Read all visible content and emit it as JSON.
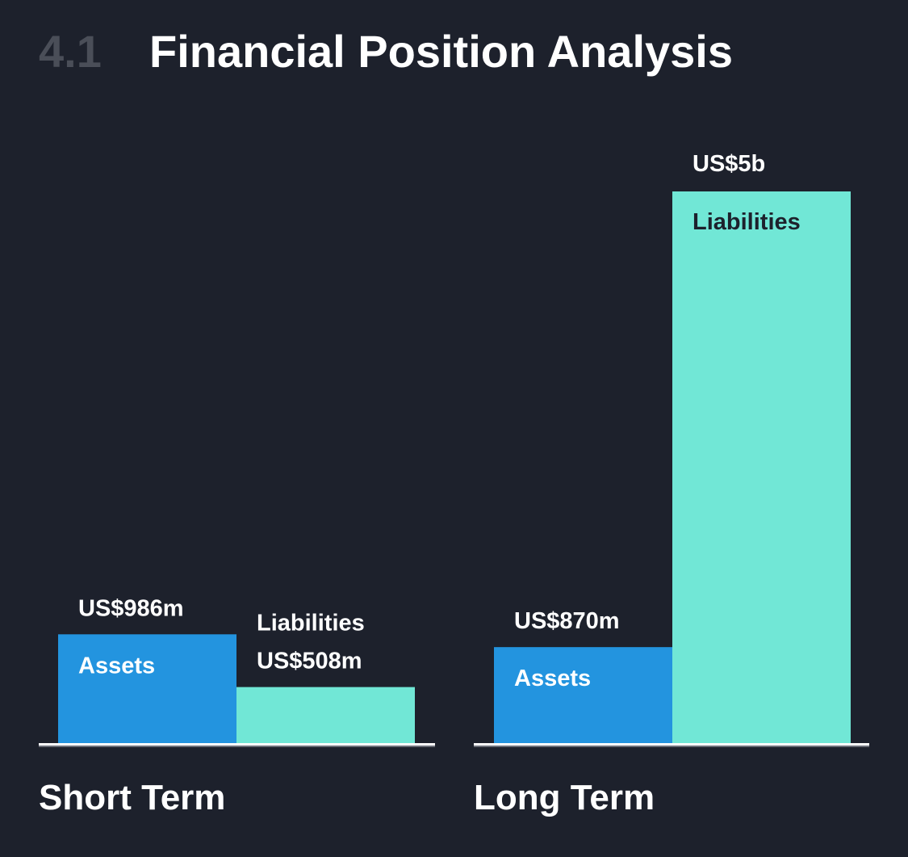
{
  "header": {
    "section_number": "4.1",
    "title": "Financial Position Analysis"
  },
  "colors": {
    "background": "#1d212c",
    "assets": "#2394df",
    "liabilities": "#71e7d6",
    "text_light": "#ffffff",
    "text_dark": "#1d212c",
    "section_number": "#4a4e58",
    "baseline": "#ffffff"
  },
  "chart_data": {
    "type": "bar",
    "title": "Financial Position Analysis",
    "unit": "US$ millions",
    "ylim": [
      0,
      5000
    ],
    "grid": false,
    "groups": [
      {
        "name": "Short Term",
        "bars": [
          {
            "series": "Assets",
            "value": 986,
            "value_label": "US$986m"
          },
          {
            "series": "Liabilities",
            "value": 508,
            "value_label": "US$508m"
          }
        ]
      },
      {
        "name": "Long Term",
        "bars": [
          {
            "series": "Assets",
            "value": 870,
            "value_label": "US$870m"
          },
          {
            "series": "Liabilities",
            "value": 5000,
            "value_label": "US$5b"
          }
        ]
      }
    ]
  }
}
